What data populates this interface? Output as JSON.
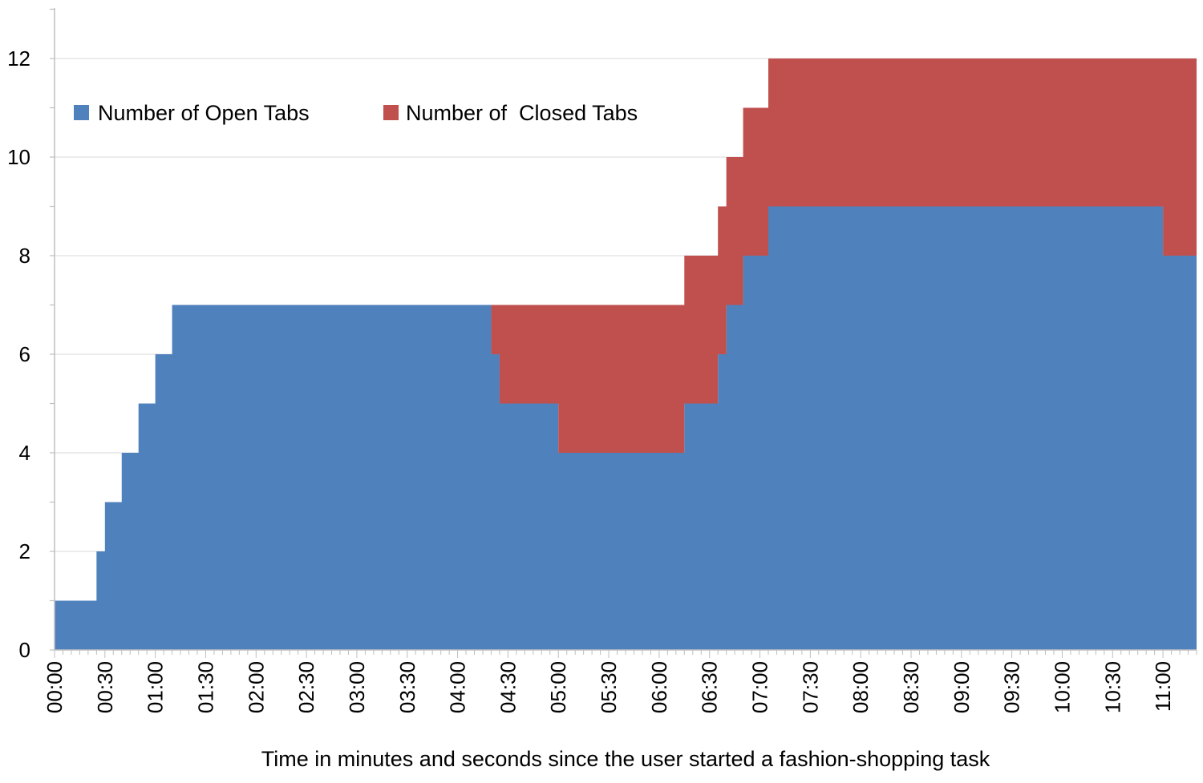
{
  "chart_data": {
    "type": "area",
    "stacked": true,
    "step": true,
    "title": "",
    "xlabel": "Time in minutes and seconds since the user started a fashion-shopping task",
    "ylabel": "",
    "ylim": [
      0,
      13
    ],
    "y_ticks": [
      0,
      2,
      4,
      6,
      8,
      10,
      12
    ],
    "y_tick_labels": [
      "0",
      "2",
      "4",
      "6",
      "8",
      "10",
      "12"
    ],
    "x_unit": "seconds",
    "x_range": [
      0,
      680
    ],
    "x_ticks_seconds": [
      0,
      30,
      60,
      90,
      120,
      150,
      180,
      210,
      240,
      270,
      300,
      330,
      360,
      390,
      420,
      450,
      480,
      510,
      540,
      570,
      600,
      630,
      660
    ],
    "x_tick_labels": [
      "00:00",
      "00:30",
      "01:00",
      "01:30",
      "02:00",
      "02:30",
      "03:00",
      "03:30",
      "04:00",
      "04:30",
      "05:00",
      "05:30",
      "06:00",
      "06:30",
      "07:00",
      "07:30",
      "08:00",
      "08:30",
      "09:00",
      "09:30",
      "10:00",
      "10:30",
      "11:00"
    ],
    "grid": {
      "horizontal": true,
      "vertical": false
    },
    "legend_position": "top-left",
    "series": [
      {
        "name": "Number of Open Tabs",
        "color": "#4F81BD",
        "x": [
          0,
          25,
          30,
          40,
          50,
          60,
          70,
          260,
          265,
          300,
          375,
          395,
          400,
          410,
          425,
          660,
          680
        ],
        "values": [
          1,
          2,
          3,
          4,
          5,
          6,
          7,
          6,
          5,
          4,
          5,
          6,
          7,
          8,
          9,
          8,
          8
        ]
      },
      {
        "name": "Number of  Closed Tabs",
        "color": "#C0504D",
        "x": [
          0,
          260,
          265,
          300,
          375,
          395,
          400,
          410,
          425,
          660,
          680
        ],
        "values": [
          0,
          1,
          2,
          3,
          3,
          3,
          3,
          3,
          3,
          4,
          4
        ]
      }
    ]
  }
}
